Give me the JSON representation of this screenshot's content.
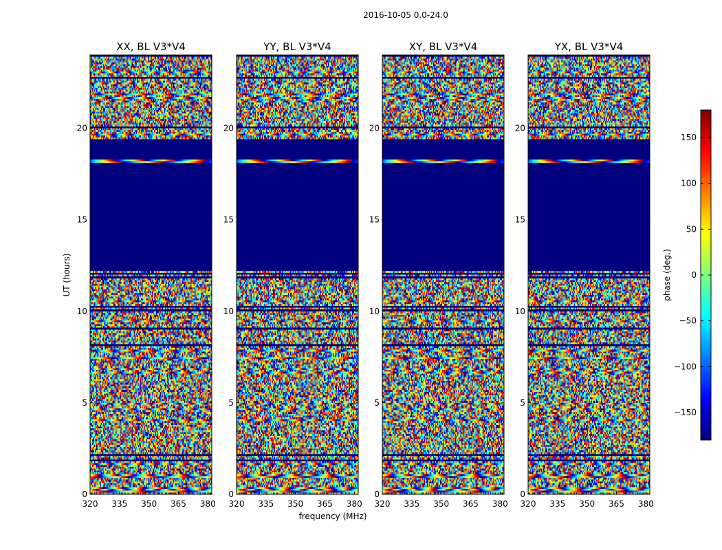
{
  "chart_data": {
    "type": "heatmap",
    "suptitle": "2016-10-05 0.0-24.0",
    "xlabel": "frequency (MHz)",
    "ylabel": "UT (hours)",
    "xlim": [
      320,
      382
    ],
    "ylim": [
      0,
      24
    ],
    "xticks": [
      320,
      335,
      350,
      365,
      380
    ],
    "yticks": [
      0,
      5,
      10,
      15,
      20
    ],
    "colorbar": {
      "label": "phase (deg.)",
      "range": [
        -180,
        180
      ],
      "ticks": [
        150,
        100,
        50,
        0,
        -50,
        -100,
        -150
      ],
      "tick_labels": [
        "150",
        "100",
        "50",
        "0",
        "−50",
        "−100",
        "−150"
      ],
      "colormap": "jet"
    },
    "flagged_intervals_hours": [
      [
        12.4,
        19.4
      ]
    ],
    "panels": [
      {
        "title": "XX, BL V3*V4"
      },
      {
        "title": "YY, BL V3*V4"
      },
      {
        "title": "XY, BL V3*V4"
      },
      {
        "title": "YX, BL V3*V4"
      }
    ]
  },
  "colors": {
    "flagged": "#00007f",
    "jet": [
      "#00007f",
      "#0000ff",
      "#007fff",
      "#00ffff",
      "#7fff7f",
      "#ffff00",
      "#ff7f00",
      "#ff0000",
      "#7f0000"
    ]
  }
}
